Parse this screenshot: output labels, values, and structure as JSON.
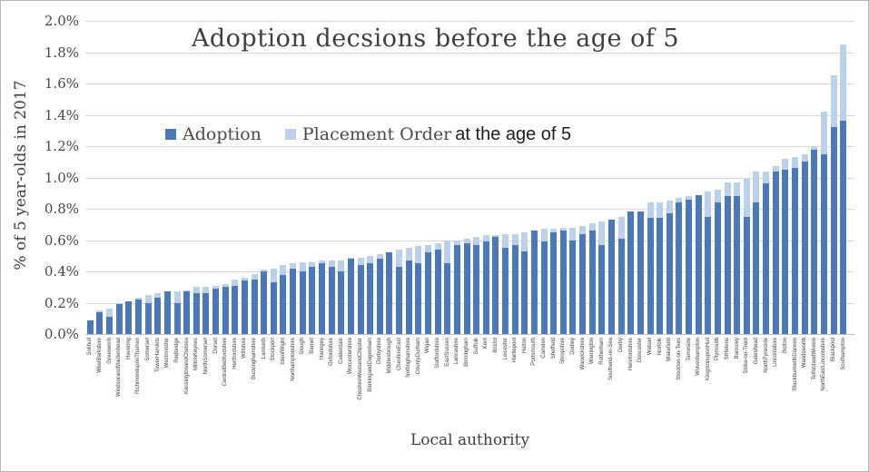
{
  "chart": {
    "legend": {
      "adoption": "Adoption",
      "placement": "Placement Order"
    },
    "annotation": "at the age of 5",
    "colors": {
      "adoption": "#4a79b5",
      "placement": "#bcd1e8",
      "gridline": "#d9d9d9",
      "axis": "#bfbfbf",
      "text": "#3f3f3f"
    }
  },
  "chart_data": {
    "type": "bar",
    "stacked": true,
    "title": "Adoption decsions before the age of 5",
    "xlabel": "Local authority",
    "ylabel": "% of 5 year-olds in 2017",
    "ylim": [
      0,
      2.0
    ],
    "ytick_step": 0.2,
    "ytick_labels": [
      "2.0%",
      "1.8%",
      "1.6%",
      "1.4%",
      "1.2%",
      "1.0%",
      "0.8%",
      "0.6%",
      "0.4%",
      "0.2%",
      "0.0%"
    ],
    "grid": true,
    "legend_position": "inside-top-center",
    "categories": [
      "Solihull",
      "WestBerkshire",
      "Greenwich",
      "WindsorandMaidenhead",
      "Havering",
      "RichmonduponThames",
      "Somerset",
      "TowerHamlets",
      "Westminster",
      "Redbridge",
      "KensingtonandChelsea",
      "MiltonKeynes",
      "NorthSomerset",
      "Dorset",
      "CentralBedfordshire",
      "Hertfordshire",
      "Wiltshire",
      "Buckinghamshire",
      "Lambeth",
      "Stockport",
      "IsleofWight",
      "Northamptonshire",
      "Slough",
      "Barnet",
      "Haringey",
      "Oxfordshire",
      "Calderdale",
      "Worcestershire",
      "CheshireWestandChester",
      "BarkingandDagenham",
      "Derbyshire",
      "Middlesbrough",
      "CheshireEast",
      "Nottinghamshire",
      "CountyDurham",
      "Wigan",
      "Staffordshire",
      "EastSussex",
      "Lancashire",
      "Birmingham",
      "Suffolk",
      "Kent",
      "Bristol",
      "Leicester",
      "Hartlepool",
      "Halton",
      "Portsmouth",
      "Camden",
      "Sheffield",
      "Shropshire",
      "Dudley",
      "Warwickshire",
      "Warrington",
      "Rotherham",
      "Southend-on-Sea",
      "Derby",
      "Herefordshire",
      "Doncaster",
      "Walsall",
      "Norfolk",
      "Wakefield",
      "Stockton-on-Tees",
      "Tameside",
      "Wolverhampton",
      "KingstonuponHull",
      "Plymouth",
      "StHelens",
      "Barnsley",
      "Stoke-on-Trent",
      "Gateshead",
      "NorthTyneside",
      "Lincolnshire",
      "Bolton",
      "BlackburnwithDarwen",
      "Wandsworth",
      "TelfordandWrekin",
      "NorthEastLincolnshire",
      "Blackpool",
      "Southampton"
    ],
    "series": [
      {
        "name": "Adoption",
        "values": [
          0.09,
          0.14,
          0.11,
          0.19,
          0.21,
          0.22,
          0.2,
          0.23,
          0.27,
          0.2,
          0.27,
          0.26,
          0.26,
          0.29,
          0.3,
          0.31,
          0.34,
          0.35,
          0.4,
          0.33,
          0.38,
          0.42,
          0.4,
          0.43,
          0.45,
          0.43,
          0.4,
          0.48,
          0.44,
          0.45,
          0.48,
          0.52,
          0.43,
          0.47,
          0.45,
          0.52,
          0.54,
          0.45,
          0.57,
          0.58,
          0.57,
          0.59,
          0.62,
          0.55,
          0.57,
          0.53,
          0.66,
          0.59,
          0.65,
          0.66,
          0.6,
          0.64,
          0.66,
          0.57,
          0.73,
          0.61,
          0.78,
          0.78,
          0.74,
          0.74,
          0.77,
          0.84,
          0.86,
          0.89,
          0.75,
          0.84,
          0.88,
          0.88,
          0.75,
          0.84,
          0.96,
          1.04,
          1.05,
          1.06,
          1.1,
          1.18,
          1.15,
          1.32,
          1.36
        ]
      },
      {
        "name": "Placement Order",
        "values": [
          0.0,
          0.01,
          0.05,
          0.01,
          0.0,
          0.01,
          0.05,
          0.03,
          0.0,
          0.07,
          0.01,
          0.04,
          0.04,
          0.02,
          0.02,
          0.04,
          0.02,
          0.03,
          0.01,
          0.09,
          0.06,
          0.03,
          0.06,
          0.03,
          0.02,
          0.04,
          0.07,
          0.01,
          0.05,
          0.05,
          0.03,
          0.0,
          0.11,
          0.08,
          0.11,
          0.05,
          0.04,
          0.15,
          0.03,
          0.03,
          0.05,
          0.04,
          0.01,
          0.09,
          0.07,
          0.12,
          0.0,
          0.08,
          0.02,
          0.02,
          0.08,
          0.05,
          0.05,
          0.15,
          0.0,
          0.14,
          0.0,
          0.0,
          0.1,
          0.1,
          0.08,
          0.03,
          0.02,
          0.0,
          0.16,
          0.08,
          0.09,
          0.09,
          0.24,
          0.2,
          0.08,
          0.03,
          0.07,
          0.07,
          0.05,
          0.02,
          0.27,
          0.33,
          0.49
        ]
      }
    ]
  }
}
